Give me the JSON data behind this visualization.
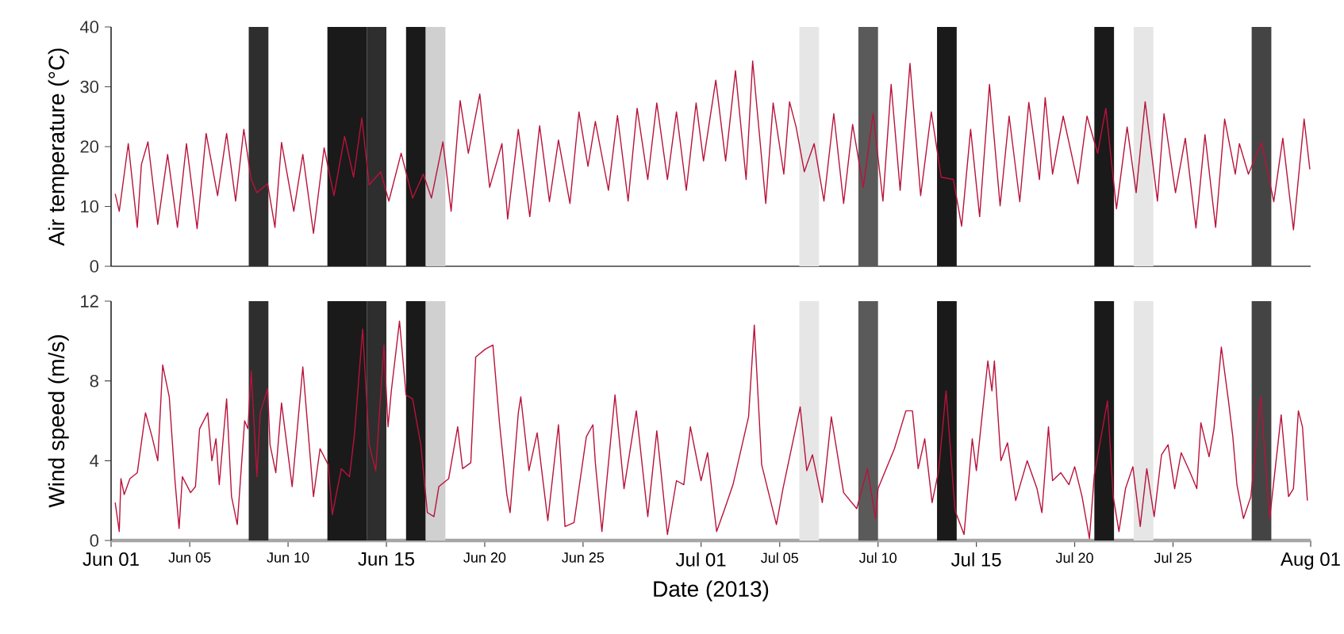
{
  "chart_data": [
    {
      "type": "line",
      "ylabel": "Air temperature (°C)",
      "color": "#b8133c",
      "xlim": [
        "2013-06-01",
        "2013-08-01"
      ],
      "ylim": [
        0,
        40
      ],
      "yticks": [
        0,
        10,
        20,
        30,
        40
      ],
      "tick_labels": "y",
      "bands": [
        {
          "axis": "x",
          "from": "2013-06-08",
          "to": "2013-06-09",
          "color": "#2e2e2e"
        },
        {
          "axis": "x",
          "from": "2013-06-12",
          "to": "2013-06-14",
          "color": "#1a1a1a"
        },
        {
          "axis": "x",
          "from": "2013-06-14",
          "to": "2013-06-15",
          "color": "#2e2e2e"
        },
        {
          "axis": "x",
          "from": "2013-06-16",
          "to": "2013-06-17",
          "color": "#1a1a1a"
        },
        {
          "axis": "x",
          "from": "2013-06-17",
          "to": "2013-06-18",
          "color": "#d0d0d0"
        },
        {
          "axis": "x",
          "from": "2013-07-06",
          "to": "2013-07-07",
          "color": "#e6e6e6"
        },
        {
          "axis": "x",
          "from": "2013-07-09",
          "to": "2013-07-10",
          "color": "#5a5a5a"
        },
        {
          "axis": "x",
          "from": "2013-07-13",
          "to": "2013-07-14",
          "color": "#1a1a1a"
        },
        {
          "axis": "x",
          "from": "2013-07-21",
          "to": "2013-07-22",
          "color": "#1a1a1a"
        },
        {
          "axis": "x",
          "from": "2013-07-23",
          "to": "2013-07-24",
          "color": "#e6e6e6"
        },
        {
          "axis": "x",
          "from": "2013-07-29",
          "to": "2013-07-30",
          "color": "#444444"
        }
      ],
      "x": [
        "2013-06-01T05:00",
        "2013-06-01T10:00",
        "2013-06-01T21:00",
        "2013-06-02T08:00",
        "2013-06-02T13:00",
        "2013-06-02T21:00",
        "2013-06-03T09:00",
        "2013-06-03T21:00",
        "2013-06-04T09:00",
        "2013-06-04T20:00",
        "2013-06-05T09:00",
        "2013-06-05T20:00",
        "2013-06-06T10:00",
        "2013-06-06T21:00",
        "2013-06-07T08:00",
        "2013-06-07T18:00",
        "2013-06-08T03:00",
        "2013-06-08T10:00",
        "2013-06-08T23:00",
        "2013-06-09T08:00",
        "2013-06-09T16:00",
        "2013-06-10T07:00",
        "2013-06-10T18:00",
        "2013-06-11T07:00",
        "2013-06-11T20:00",
        "2013-06-12T08:00",
        "2013-06-12T21:00",
        "2013-06-13T08:00",
        "2013-06-13T18:00",
        "2013-06-14T03:00",
        "2013-06-14T17:00",
        "2013-06-15T03:00",
        "2013-06-15T18:00",
        "2013-06-16T08:00",
        "2013-06-16T21:00",
        "2013-06-17T07:00",
        "2013-06-17T21:00",
        "2013-06-18T07:00",
        "2013-06-18T18:00",
        "2013-06-19T04:00",
        "2013-06-19T18:00",
        "2013-06-20T06:00",
        "2013-06-20T21:00",
        "2013-06-21T04:00",
        "2013-06-21T17:00",
        "2013-06-22T07:00",
        "2013-06-22T19:00",
        "2013-06-23T07:00",
        "2013-06-23T18:00",
        "2013-06-24T08:00",
        "2013-06-24T19:00",
        "2013-06-25T06:00",
        "2013-06-25T15:00",
        "2013-06-26T07:00",
        "2013-06-26T18:00",
        "2013-06-27T07:00",
        "2013-06-27T18:00",
        "2013-06-28T07:00",
        "2013-06-28T18:00",
        "2013-06-29T07:00",
        "2013-06-29T18:00",
        "2013-06-30T06:00",
        "2013-06-30T18:00",
        "2013-07-01T03:00",
        "2013-07-01T18:00",
        "2013-07-02T06:00",
        "2013-07-02T18:00",
        "2013-07-03T07:00",
        "2013-07-03T15:00",
        "2013-07-04T07:00",
        "2013-07-04T16:00",
        "2013-07-05T05:00",
        "2013-07-05T12:00",
        "2013-07-05T20:00",
        "2013-07-06T06:00",
        "2013-07-06T18:00",
        "2013-07-07T06:00",
        "2013-07-07T18:00",
        "2013-07-08T06:00",
        "2013-07-08T17:00",
        "2013-07-09T06:00",
        "2013-07-09T18:00",
        "2013-07-10T06:00",
        "2013-07-10T16:00",
        "2013-07-11T03:00",
        "2013-07-11T15:00",
        "2013-07-12T04:00",
        "2013-07-12T17:00",
        "2013-07-13T05:00",
        "2013-07-13T20:00",
        "2013-07-14T06:00",
        "2013-07-14T17:00",
        "2013-07-15T04:00",
        "2013-07-15T16:00",
        "2013-07-16T05:00",
        "2013-07-16T16:00",
        "2013-07-17T05:00",
        "2013-07-17T16:00",
        "2013-07-18T05:00",
        "2013-07-18T12:00",
        "2013-07-18T21:00",
        "2013-07-19T10:00",
        "2013-07-20T04:00",
        "2013-07-20T15:00",
        "2013-07-21T04:00",
        "2013-07-21T14:00",
        "2013-07-22T03:00",
        "2013-07-22T16:00",
        "2013-07-23T03:00",
        "2013-07-23T14:00",
        "2013-07-24T05:00",
        "2013-07-24T13:00",
        "2013-07-25T03:00",
        "2013-07-25T15:00",
        "2013-07-26T04:00",
        "2013-07-26T15:00",
        "2013-07-27T04:00",
        "2013-07-27T15:00",
        "2013-07-28T04:00",
        "2013-07-28T09:00",
        "2013-07-28T20:00",
        "2013-07-29T12:00",
        "2013-07-30T03:00",
        "2013-07-30T14:00",
        "2013-07-31T03:00",
        "2013-07-31T16:00",
        "2013-07-31T23:00"
      ],
      "values": [
        12.1,
        9.2,
        20.5,
        6.5,
        17,
        20.8,
        7,
        18.7,
        6.5,
        20.5,
        6.3,
        22.2,
        11.8,
        22.2,
        10.9,
        22.9,
        14.5,
        12.3,
        13.8,
        6.5,
        20.7,
        9.2,
        18.7,
        5.5,
        19.8,
        11.8,
        21.7,
        14.9,
        24.8,
        13.6,
        15.8,
        10.9,
        18.9,
        11.4,
        15.4,
        11.4,
        20.8,
        9.2,
        27.7,
        18.9,
        28.8,
        13.2,
        20.5,
        7.9,
        22.9,
        8.3,
        23.5,
        10.8,
        21.1,
        10.5,
        25.8,
        16.7,
        24.2,
        12.7,
        25.2,
        10.9,
        26.4,
        14.5,
        27.3,
        14.5,
        25.8,
        12.7,
        27.3,
        17.6,
        31.1,
        17.6,
        32.7,
        14.5,
        34.3,
        10.5,
        27.3,
        15.4,
        27.5,
        23.3,
        15.8,
        20.5,
        10.9,
        25.5,
        10.5,
        23.7,
        13.2,
        25.5,
        10.9,
        30.4,
        12.7,
        33.9,
        11.8,
        25.8,
        14.9,
        14.5,
        6.7,
        22.9,
        8.3,
        30.4,
        10.1,
        25.1,
        10.8,
        27.4,
        14.5,
        28.2,
        15.4,
        25.1,
        13.8,
        25.1,
        18.9,
        26.4,
        9.6,
        23.3,
        12.3,
        27.5,
        10.9,
        25.5,
        12.3,
        21.4,
        6.4,
        22,
        6.5,
        24.6,
        15.4,
        20.5,
        15.4,
        20.7,
        10.8,
        21.4,
        6.1,
        24.6,
        16.2
      ]
    },
    {
      "type": "line",
      "ylabel": "Wind speed (m/s)",
      "xlabel": "Date (2013)",
      "color": "#b8133c",
      "xlim": [
        "2013-06-01",
        "2013-08-01"
      ],
      "ylim": [
        0,
        12
      ],
      "yticks": [
        0,
        4,
        8,
        12
      ],
      "xticks": [
        {
          "value": "2013-06-01",
          "label": "Jun 01"
        },
        {
          "value": "2013-06-05",
          "label": "Jun 05"
        },
        {
          "value": "2013-06-10",
          "label": "Jun 10"
        },
        {
          "value": "2013-06-15",
          "label": "Jun 15"
        },
        {
          "value": "2013-06-20",
          "label": "Jun 20"
        },
        {
          "value": "2013-06-25",
          "label": "Jun 25"
        },
        {
          "value": "2013-07-01",
          "label": "Jul 01"
        },
        {
          "value": "2013-07-05",
          "label": "Jul 05"
        },
        {
          "value": "2013-07-10",
          "label": "Jul 10"
        },
        {
          "value": "2013-07-15",
          "label": "Jul 15"
        },
        {
          "value": "2013-07-20",
          "label": "Jul 20"
        },
        {
          "value": "2013-07-25",
          "label": "Jul 25"
        },
        {
          "value": "2013-08-01",
          "label": "Aug 01"
        }
      ],
      "bands": [
        {
          "axis": "x",
          "from": "2013-06-08",
          "to": "2013-06-09",
          "color": "#2e2e2e"
        },
        {
          "axis": "x",
          "from": "2013-06-12",
          "to": "2013-06-14",
          "color": "#1a1a1a"
        },
        {
          "axis": "x",
          "from": "2013-06-14",
          "to": "2013-06-15",
          "color": "#2e2e2e"
        },
        {
          "axis": "x",
          "from": "2013-06-16",
          "to": "2013-06-17",
          "color": "#1a1a1a"
        },
        {
          "axis": "x",
          "from": "2013-06-17",
          "to": "2013-06-18",
          "color": "#d0d0d0"
        },
        {
          "axis": "x",
          "from": "2013-07-06",
          "to": "2013-07-07",
          "color": "#e6e6e6"
        },
        {
          "axis": "x",
          "from": "2013-07-09",
          "to": "2013-07-10",
          "color": "#5a5a5a"
        },
        {
          "axis": "x",
          "from": "2013-07-13",
          "to": "2013-07-14",
          "color": "#1a1a1a"
        },
        {
          "axis": "x",
          "from": "2013-07-21",
          "to": "2013-07-22",
          "color": "#1a1a1a"
        },
        {
          "axis": "x",
          "from": "2013-07-23",
          "to": "2013-07-24",
          "color": "#e6e6e6"
        },
        {
          "axis": "x",
          "from": "2013-07-29",
          "to": "2013-07-30",
          "color": "#444444"
        }
      ],
      "x": [
        "2013-06-01T05:00",
        "2013-06-01T10:00",
        "2013-06-01T12:00",
        "2013-06-01T16:00",
        "2013-06-01T23:00",
        "2013-06-02T08:00",
        "2013-06-02T18:00",
        "2013-06-03T02:00",
        "2013-06-03T09:00",
        "2013-06-03T15:00",
        "2013-06-03T23:00",
        "2013-06-04T06:00",
        "2013-06-04T11:00",
        "2013-06-04T15:00",
        "2013-06-05T01:00",
        "2013-06-05T07:00",
        "2013-06-05T12:00",
        "2013-06-05T22:00",
        "2013-06-06T03:00",
        "2013-06-06T08:00",
        "2013-06-06T12:00",
        "2013-06-06T21:00",
        "2013-06-07T03:00",
        "2013-06-07T10:00",
        "2013-06-07T19:00",
        "2013-06-07T23:00",
        "2013-06-08T03:00",
        "2013-06-08T10:00",
        "2013-06-08T14:00",
        "2013-06-08T23:00",
        "2013-06-09T02:00",
        "2013-06-09T09:00",
        "2013-06-09T16:00",
        "2013-06-10T05:00",
        "2013-06-10T18:00",
        "2013-06-11T07:00",
        "2013-06-11T15:00",
        "2013-06-12T01:00",
        "2013-06-12T06:00",
        "2013-06-12T17:00",
        "2013-06-13T03:00",
        "2013-06-13T09:00",
        "2013-06-13T19:00",
        "2013-06-14T03:00",
        "2013-06-14T11:00",
        "2013-06-14T21:00",
        "2013-06-15T02:00",
        "2013-06-15T06:00",
        "2013-06-15T16:00",
        "2013-06-16T00:00",
        "2013-06-16T08:00",
        "2013-06-16T18:00",
        "2013-06-17T02:00",
        "2013-06-17T10:00",
        "2013-06-17T16:00",
        "2013-06-18T04:00",
        "2013-06-18T15:00",
        "2013-06-18T21:00",
        "2013-06-19T07:00",
        "2013-06-19T13:00",
        "2013-06-20T01:00",
        "2013-06-20T10:00",
        "2013-06-20T18:00",
        "2013-06-21T03:00",
        "2013-06-21T07:00",
        "2013-06-21T17:00",
        "2013-06-21T20:00",
        "2013-06-22T06:00",
        "2013-06-22T16:00",
        "2013-06-23T05:00",
        "2013-06-23T18:00",
        "2013-06-24T02:00",
        "2013-06-24T13:00",
        "2013-06-25T04:00",
        "2013-06-25T12:00",
        "2013-06-25T15:00",
        "2013-06-25T23:00",
        "2013-06-26T15:00",
        "2013-06-27T02:00",
        "2013-06-27T17:00",
        "2013-06-28T07:00",
        "2013-06-28T18:00",
        "2013-06-29T07:00",
        "2013-06-29T18:00",
        "2013-06-30T03:00",
        "2013-06-30T11:00",
        "2013-07-01T00:00",
        "2013-07-01T08:00",
        "2013-07-01T19:00",
        "2013-07-02T05:00",
        "2013-07-02T15:00",
        "2013-07-03T10:00",
        "2013-07-03T17:00",
        "2013-07-04T02:00",
        "2013-07-04T20:00",
        "2013-07-05T04:00",
        "2013-07-06T01:00",
        "2013-07-06T09:00",
        "2013-07-06T16:00",
        "2013-07-07T04:00",
        "2013-07-07T15:00",
        "2013-07-08T06:00",
        "2013-07-08T22:00",
        "2013-07-09T11:00",
        "2013-07-09T21:00",
        "2013-07-10T00:00",
        "2013-07-10T20:00",
        "2013-07-11T10:00",
        "2013-07-11T18:00",
        "2013-07-12T01:00",
        "2013-07-12T09:00",
        "2013-07-12T18:00",
        "2013-07-13T02:00",
        "2013-07-13T11:00",
        "2013-07-13T22:00",
        "2013-07-14T09:00",
        "2013-07-14T19:00",
        "2013-07-15T00:00",
        "2013-07-15T14:00",
        "2013-07-15T19:00",
        "2013-07-15T22:00",
        "2013-07-16T06:00",
        "2013-07-16T14:00",
        "2013-07-17T00:00",
        "2013-07-17T14:00",
        "2013-07-18T02:00",
        "2013-07-18T08:00",
        "2013-07-18T16:00",
        "2013-07-18T21:00",
        "2013-07-19T07:00",
        "2013-07-19T17:00",
        "2013-07-20T00:00",
        "2013-07-20T09:00",
        "2013-07-20T18:00",
        "2013-07-21T00:00",
        "2013-07-21T16:00",
        "2013-07-21T23:00",
        "2013-07-22T06:00",
        "2013-07-22T14:00",
        "2013-07-22T23:00",
        "2013-07-23T08:00",
        "2013-07-23T16:00",
        "2013-07-24T01:00",
        "2013-07-24T10:00",
        "2013-07-24T18:00",
        "2013-07-25T02:00",
        "2013-07-25T10:00",
        "2013-07-25T21:00",
        "2013-07-26T05:00",
        "2013-07-26T10:00",
        "2013-07-26T20:00",
        "2013-07-27T02:00",
        "2013-07-27T11:00",
        "2013-07-27T20:00",
        "2013-07-28T01:00",
        "2013-07-28T06:00",
        "2013-07-28T14:00",
        "2013-07-28T23:00",
        "2013-07-29T11:00",
        "2013-07-29T22:00",
        "2013-07-30T12:00",
        "2013-07-30T21:00",
        "2013-07-31T03:00",
        "2013-07-31T09:00",
        "2013-07-31T14:00",
        "2013-07-31T20:00"
      ],
      "values": [
        1.9,
        0.45,
        3.1,
        2.3,
        3.1,
        3.4,
        6.4,
        5.2,
        4.0,
        8.8,
        7.2,
        3.0,
        0.6,
        3.2,
        2.4,
        2.7,
        5.6,
        6.4,
        4.0,
        5.1,
        2.8,
        7.1,
        2.2,
        0.8,
        6.0,
        5.6,
        8.5,
        3.2,
        6.4,
        7.6,
        4.8,
        3.4,
        6.9,
        2.7,
        8.7,
        2.2,
        4.6,
        3.8,
        1.3,
        3.6,
        3.2,
        5.3,
        10.6,
        4.8,
        3.5,
        9.8,
        5.7,
        7.5,
        11.0,
        7.3,
        7.1,
        4.8,
        1.4,
        1.2,
        2.7,
        3.1,
        5.7,
        3.6,
        3.9,
        9.2,
        9.6,
        9.8,
        5.9,
        2.3,
        1.4,
        6.4,
        7.2,
        3.5,
        5.4,
        1.0,
        5.8,
        0.7,
        0.9,
        5.2,
        5.8,
        3.9,
        0.45,
        7.3,
        2.6,
        6.5,
        1.2,
        5.5,
        0.3,
        3.0,
        2.8,
        5.7,
        3.0,
        4.4,
        0.45,
        1.6,
        2.8,
        6.2,
        10.8,
        3.8,
        0.8,
        2.6,
        6.7,
        3.5,
        4.3,
        1.9,
        6.2,
        2.4,
        1.6,
        3.6,
        1.1,
        2.6,
        4.6,
        6.5,
        6.5,
        3.6,
        5.1,
        1.9,
        3.5,
        7.5,
        1.5,
        0.3,
        5.1,
        3.5,
        9.0,
        7.5,
        9.0,
        4.0,
        4.9,
        2.0,
        4.0,
        2.6,
        1.4,
        5.7,
        3.0,
        3.4,
        2.8,
        3.7,
        2.2,
        0.1,
        3.3,
        7.0,
        2.2,
        0.45,
        2.6,
        3.7,
        0.7,
        3.6,
        1.2,
        4.3,
        4.8,
        2.6,
        4.4,
        3.4,
        2.6,
        5.9,
        4.2,
        5.6,
        9.7,
        6.9,
        5.2,
        2.8,
        1.1,
        2.2,
        7.2,
        1.1,
        6.3,
        2.2,
        2.6,
        6.5,
        5.7,
        2.0
      ]
    }
  ]
}
